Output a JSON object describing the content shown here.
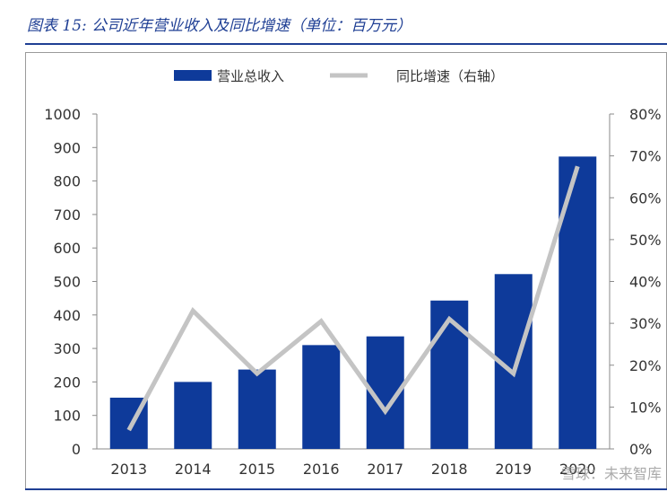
{
  "figure": {
    "title": "图表 15:  公司近年营业收入及同比增速（单位：百万元）"
  },
  "watermark": "雪球：未来智库",
  "colors": {
    "bar": "#0e3a9a",
    "line": "#c4c4c4",
    "title": "#1f3f94",
    "axis": "#8a8a8a"
  },
  "chart_data": {
    "type": "bar",
    "title": "",
    "xlabel": "",
    "ylabel": "",
    "categories": [
      "2013",
      "2014",
      "2015",
      "2016",
      "2017",
      "2018",
      "2019",
      "2020"
    ],
    "series": [
      {
        "name": "营业总收入",
        "type": "bar",
        "axis": "left",
        "values": [
          153,
          200,
          237,
          310,
          336,
          443,
          522,
          873
        ]
      },
      {
        "name": "同比增速（右轴）",
        "type": "line",
        "axis": "right",
        "values": [
          4.5,
          33,
          18,
          30.5,
          9,
          31,
          18,
          67.5
        ]
      }
    ],
    "ylim": [
      0,
      1000
    ],
    "yticks": [
      0,
      100,
      200,
      300,
      400,
      500,
      600,
      700,
      800,
      900,
      1000
    ],
    "y2lim": [
      0,
      80
    ],
    "y2ticks": [
      "0%",
      "10%",
      "20%",
      "30%",
      "40%",
      "50%",
      "60%",
      "70%",
      "80%"
    ],
    "legend_position": "top",
    "grid": false
  }
}
